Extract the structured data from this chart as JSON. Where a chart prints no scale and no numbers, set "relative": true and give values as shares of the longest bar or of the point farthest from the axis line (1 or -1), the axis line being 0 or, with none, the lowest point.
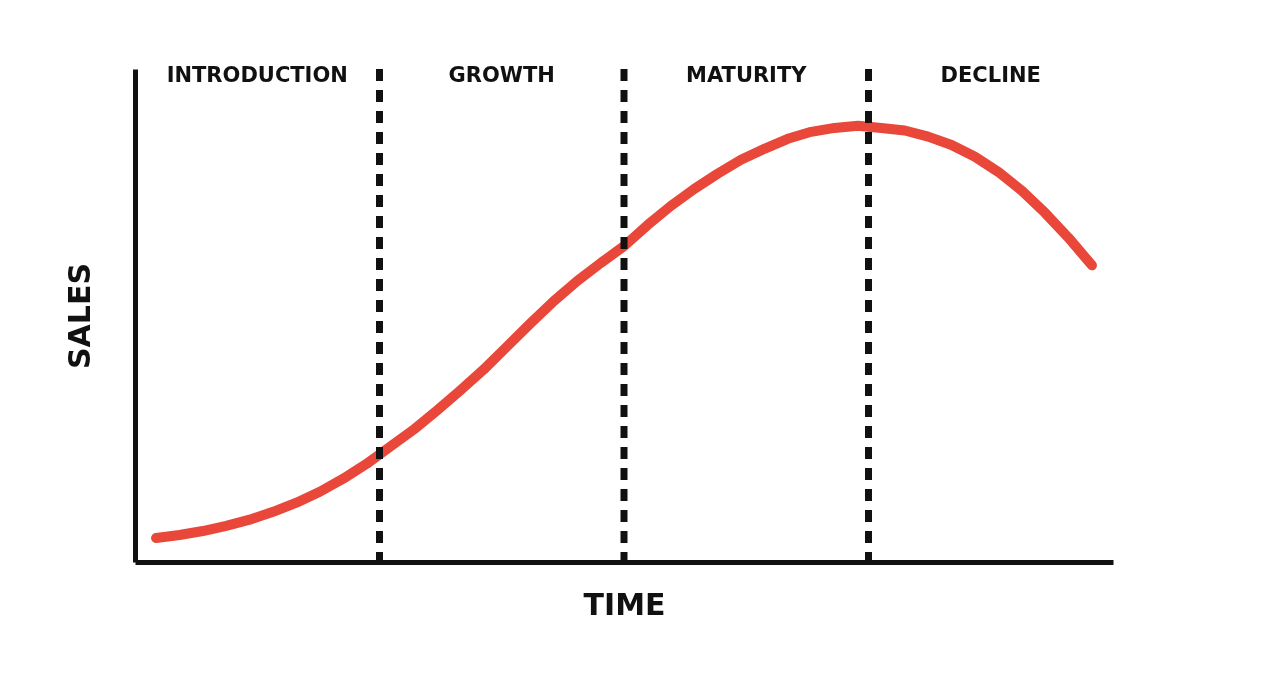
{
  "chart_data": {
    "type": "line",
    "relative": true,
    "xlabel": "TIME",
    "ylabel": "SALES",
    "categories": [
      null,
      null,
      null,
      null,
      null,
      null,
      null,
      null,
      null,
      null,
      null,
      null,
      null,
      null,
      null,
      null,
      null,
      null,
      null,
      null,
      null,
      null,
      null,
      null,
      null,
      null,
      null,
      null,
      null,
      null,
      null,
      null,
      null,
      null,
      null,
      null,
      null,
      null,
      null,
      null,
      null
    ],
    "values": [
      0.055,
      0.062,
      0.071,
      0.083,
      0.097,
      0.115,
      0.136,
      0.161,
      0.191,
      0.225,
      0.264,
      0.303,
      0.347,
      0.393,
      0.441,
      0.494,
      0.547,
      0.598,
      0.644,
      0.685,
      0.724,
      0.772,
      0.816,
      0.855,
      0.89,
      0.922,
      0.947,
      0.97,
      0.986,
      0.995,
      1,
      0.995,
      0.989,
      0.975,
      0.956,
      0.929,
      0.894,
      0.851,
      0.8,
      0.743,
      0.68
    ],
    "color": "#e8473a",
    "line_style": "solid",
    "annotations": [
      "INTRODUCTION",
      "GROWTH",
      "MATURITY",
      "DECLINE"
    ],
    "ref_lines": [
      {
        "axis": "x",
        "line_style": "dashed"
      },
      {
        "axis": "x",
        "line_style": "dashed"
      },
      {
        "axis": "x",
        "line_style": "dashed"
      }
    ]
  }
}
